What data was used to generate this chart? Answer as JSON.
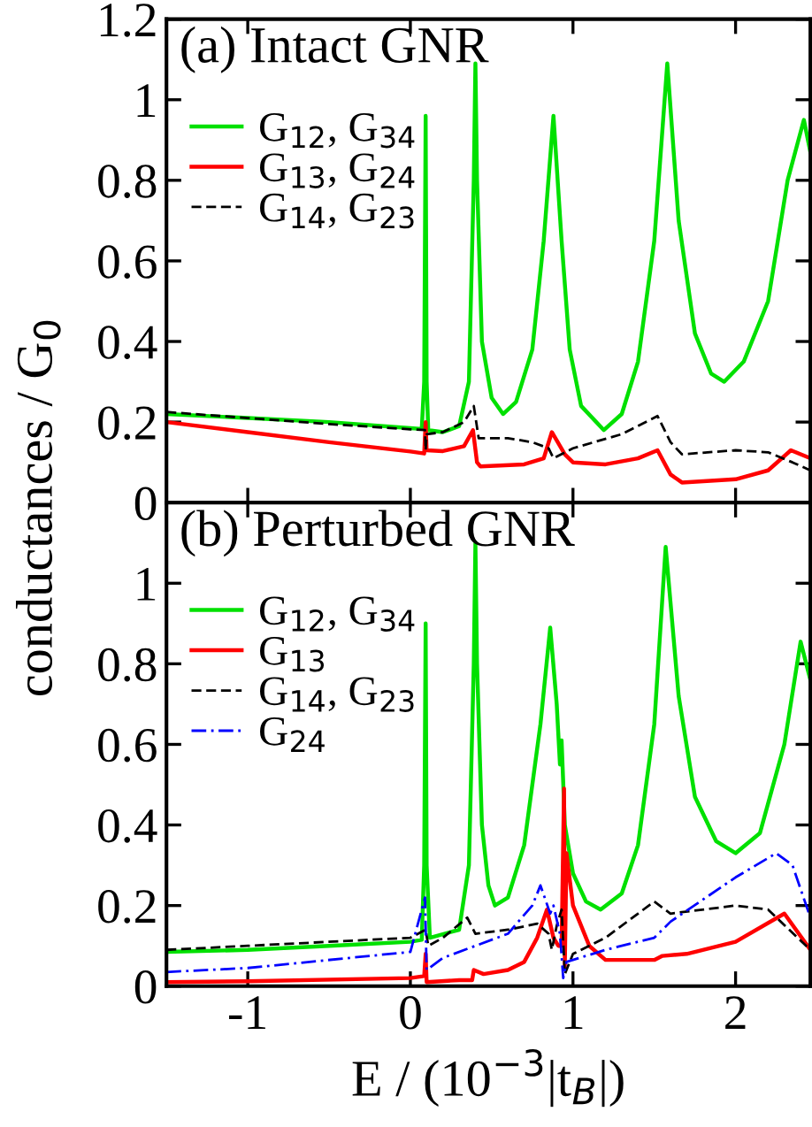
{
  "chart_data": [
    {
      "type": "line",
      "title": "(a) Intact GNR",
      "ylabel": "conductances / G$_{0}$",
      "xlim": [
        -1.5,
        2.46
      ],
      "ylim": [
        0,
        1.2
      ],
      "xticks": [
        -1,
        0,
        1,
        2
      ],
      "yticks": [
        0,
        0.2,
        0.4,
        0.6,
        0.8,
        1,
        1.2
      ],
      "tick_labels": "y",
      "legend": "top left",
      "grid": false,
      "series": [
        {
          "name": "G$_{12}$, G$_{34}$",
          "color": "#00e000",
          "line_style": "solid",
          "x": [
            -1.5,
            -1,
            -0.5,
            0,
            0.07,
            0.085,
            0.094,
            0.1,
            0.11,
            0.2,
            0.3,
            0.36,
            0.39,
            0.4,
            0.41,
            0.44,
            0.5,
            0.57,
            0.65,
            0.75,
            0.82,
            0.88,
            0.93,
            0.98,
            1.05,
            1.19,
            1.3,
            1.4,
            1.5,
            1.58,
            1.65,
            1.75,
            1.85,
            1.93,
            2.05,
            2.2,
            2.32,
            2.42,
            2.46
          ],
          "values": [
            0.22,
            0.21,
            0.2,
            0.185,
            0.183,
            0.3,
            0.96,
            0.3,
            0.18,
            0.175,
            0.19,
            0.3,
            0.8,
            1.09,
            0.8,
            0.4,
            0.26,
            0.22,
            0.25,
            0.38,
            0.65,
            0.96,
            0.65,
            0.38,
            0.24,
            0.18,
            0.22,
            0.35,
            0.65,
            1.09,
            0.7,
            0.42,
            0.32,
            0.3,
            0.35,
            0.5,
            0.8,
            0.95,
            0.87
          ]
        },
        {
          "name": "G$_{13}$, G$_{24}$",
          "color": "#ff0000",
          "line_style": "solid",
          "x": [
            -1.5,
            -1,
            -0.5,
            0,
            0.085,
            0.094,
            0.1,
            0.2,
            0.33,
            0.385,
            0.41,
            0.43,
            0.7,
            0.82,
            0.87,
            0.95,
            1.0,
            1.2,
            1.4,
            1.52,
            1.6,
            1.67,
            2.0,
            2.2,
            2.34,
            2.46
          ],
          "values": [
            0.2,
            0.175,
            0.15,
            0.127,
            0.122,
            0.2,
            0.13,
            0.128,
            0.14,
            0.18,
            0.1,
            0.09,
            0.095,
            0.11,
            0.175,
            0.12,
            0.1,
            0.095,
            0.11,
            0.13,
            0.07,
            0.05,
            0.058,
            0.08,
            0.13,
            0.11
          ]
        },
        {
          "name": "G$_{14}$, G$_{23}$",
          "color": "#000000",
          "line_style": "dashed",
          "x": [
            -1.5,
            -1,
            -0.5,
            0,
            0.09,
            0.094,
            0.1,
            0.2,
            0.33,
            0.39,
            0.42,
            0.6,
            0.75,
            0.85,
            0.88,
            1.0,
            1.3,
            1.52,
            1.6,
            1.67,
            2.0,
            2.2,
            2.35,
            2.46
          ],
          "values": [
            0.225,
            0.21,
            0.195,
            0.182,
            0.18,
            0.13,
            0.17,
            0.175,
            0.2,
            0.24,
            0.16,
            0.16,
            0.15,
            0.135,
            0.11,
            0.135,
            0.17,
            0.215,
            0.15,
            0.12,
            0.13,
            0.125,
            0.1,
            0.08
          ]
        }
      ]
    },
    {
      "type": "line",
      "title": "(b) Perturbed GNR",
      "xlabel": "E / (10$^{−3}$|t$_{B}$|)",
      "xlim": [
        -1.5,
        2.46
      ],
      "ylim": [
        0,
        1.2
      ],
      "xticks": [
        -1,
        0,
        1,
        2
      ],
      "yticks": [
        0,
        0.2,
        0.4,
        0.6,
        0.8,
        1,
        {
          "value": 1.2,
          "label": null
        }
      ],
      "legend": "top left",
      "grid": false,
      "series": [
        {
          "name": "G$_{12}$, G$_{34}$",
          "color": "#00e000",
          "line_style": "solid",
          "x": [
            -1.5,
            -1,
            -0.5,
            0,
            0.07,
            0.085,
            0.094,
            0.1,
            0.12,
            0.3,
            0.36,
            0.39,
            0.4,
            0.41,
            0.44,
            0.48,
            0.52,
            0.6,
            0.7,
            0.8,
            0.86,
            0.9,
            0.92,
            0.93,
            0.95,
            1.0,
            1.08,
            1.17,
            1.3,
            1.4,
            1.5,
            1.57,
            1.65,
            1.75,
            1.88,
            2.0,
            2.15,
            2.3,
            2.4,
            2.46
          ],
          "values": [
            0.085,
            0.09,
            0.1,
            0.11,
            0.115,
            0.3,
            0.9,
            0.3,
            0.12,
            0.14,
            0.3,
            0.8,
            1.1,
            0.8,
            0.4,
            0.25,
            0.2,
            0.22,
            0.35,
            0.65,
            0.89,
            0.7,
            0.55,
            0.61,
            0.4,
            0.28,
            0.21,
            0.19,
            0.23,
            0.35,
            0.65,
            1.09,
            0.72,
            0.47,
            0.36,
            0.33,
            0.38,
            0.6,
            0.855,
            0.76
          ]
        },
        {
          "name": "G$_{13}$",
          "color": "#ff0000",
          "line_style": "solid",
          "x": [
            -1.5,
            -1,
            0,
            0.085,
            0.094,
            0.1,
            0.3,
            0.38,
            0.39,
            0.45,
            0.6,
            0.7,
            0.78,
            0.84,
            0.88,
            0.91,
            0.93,
            0.945,
            0.95,
            0.96,
            1.0,
            1.1,
            1.2,
            1.5,
            1.55,
            1.7,
            2.0,
            2.3,
            2.46
          ],
          "values": [
            0.01,
            0.012,
            0.02,
            0.025,
            0.08,
            0.01,
            0.015,
            0.015,
            0.04,
            0.03,
            0.04,
            0.06,
            0.12,
            0.19,
            0.12,
            0.1,
            0.1,
            0.49,
            0.05,
            0.33,
            0.2,
            0.1,
            0.065,
            0.065,
            0.075,
            0.08,
            0.11,
            0.18,
            0.09
          ]
        },
        {
          "name": "G$_{14}$, G$_{23}$",
          "color": "#000000",
          "line_style": "dashed",
          "x": [
            -1.5,
            -1,
            0,
            0.094,
            0.11,
            0.2,
            0.35,
            0.4,
            0.6,
            0.78,
            0.85,
            0.87,
            0.9,
            0.93,
            0.95,
            1.0,
            1.2,
            1.5,
            1.6,
            2.0,
            2.2,
            2.46
          ],
          "values": [
            0.09,
            0.1,
            0.12,
            0.14,
            0.1,
            0.12,
            0.17,
            0.13,
            0.14,
            0.155,
            0.13,
            0.09,
            0.15,
            0.19,
            0.03,
            0.08,
            0.12,
            0.21,
            0.18,
            0.2,
            0.19,
            0.09
          ]
        },
        {
          "name": "G$_{24}$",
          "color": "#0000ff",
          "line_style": "dashdot",
          "x": [
            -1.5,
            -1,
            0,
            0.09,
            0.1,
            0.2,
            0.4,
            0.6,
            0.75,
            0.8,
            0.86,
            0.88,
            0.92,
            0.94,
            0.96,
            1.2,
            1.5,
            1.6,
            2.0,
            2.25,
            2.35,
            2.46
          ],
          "values": [
            0.035,
            0.045,
            0.085,
            0.22,
            0.04,
            0.07,
            0.1,
            0.13,
            0.2,
            0.25,
            0.18,
            0.2,
            0.13,
            0.02,
            0.06,
            0.09,
            0.12,
            0.16,
            0.27,
            0.33,
            0.3,
            0.17
          ]
        }
      ]
    }
  ]
}
